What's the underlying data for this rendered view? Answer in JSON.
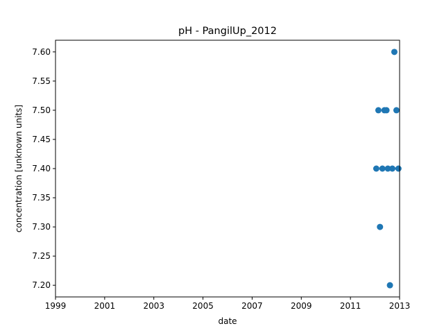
{
  "chart_data": {
    "type": "scatter",
    "title": "pH - PangilUp_2012",
    "xlabel": "date",
    "ylabel": "concentration [unknown units]",
    "x_ticks": [
      "1999",
      "2001",
      "2003",
      "2005",
      "2007",
      "2009",
      "2011",
      "2013"
    ],
    "y_ticks": [
      "7.20",
      "7.25",
      "7.30",
      "7.35",
      "7.40",
      "7.45",
      "7.50",
      "7.55",
      "7.60"
    ],
    "xlim": [
      "1999-01-01",
      "2013-01-01"
    ],
    "ylim": [
      7.18,
      7.62
    ],
    "grid": false,
    "marker_color": "#1f77b4",
    "points": [
      {
        "x": "2012-01-20",
        "y": 7.4
      },
      {
        "x": "2012-02-20",
        "y": 7.5
      },
      {
        "x": "2012-03-15",
        "y": 7.3
      },
      {
        "x": "2012-04-20",
        "y": 7.4
      },
      {
        "x": "2012-05-20",
        "y": 7.5
      },
      {
        "x": "2012-06-20",
        "y": 7.5
      },
      {
        "x": "2012-07-10",
        "y": 7.4
      },
      {
        "x": "2012-08-10",
        "y": 7.2
      },
      {
        "x": "2012-09-15",
        "y": 7.4
      },
      {
        "x": "2012-10-15",
        "y": 7.6
      },
      {
        "x": "2012-11-15",
        "y": 7.5
      },
      {
        "x": "2012-12-15",
        "y": 7.4
      }
    ]
  }
}
